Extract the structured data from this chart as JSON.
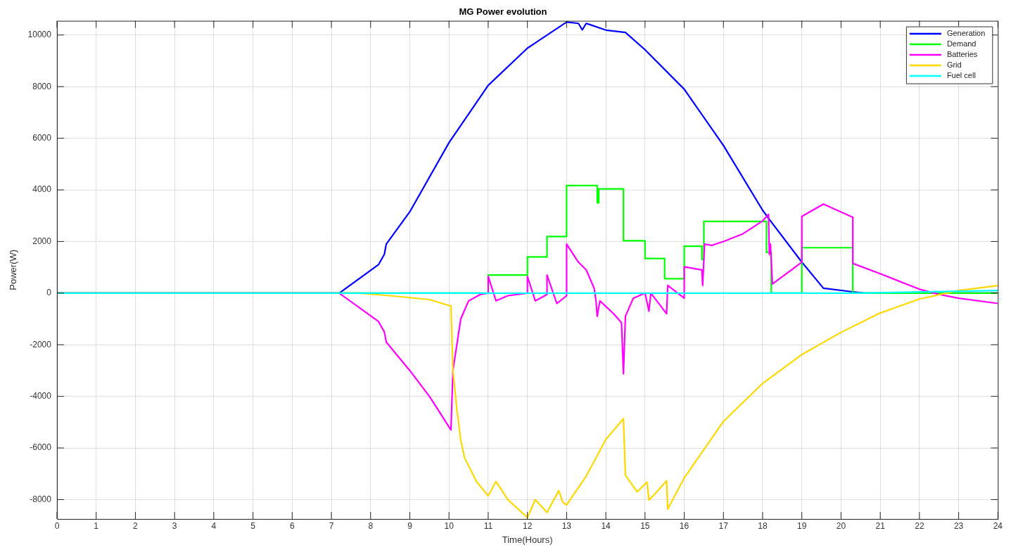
{
  "chart_data": {
    "type": "line",
    "title": "MG Power evolution",
    "xlabel": "Time(Hours)",
    "ylabel": "Power(W)",
    "xlim": [
      0,
      24
    ],
    "xticks": [
      0,
      1,
      2,
      3,
      4,
      5,
      6,
      7,
      8,
      9,
      10,
      11,
      12,
      13,
      14,
      15,
      16,
      17,
      18,
      19,
      20,
      21,
      22,
      23,
      24
    ],
    "ylim": [
      -8750,
      10550
    ],
    "yticks": [
      -8000,
      -6000,
      -4000,
      -2000,
      0,
      2000,
      4000,
      6000,
      8000,
      10000
    ],
    "grid": true,
    "legend": "top right",
    "marker": "none",
    "line_style": "solid",
    "series": [
      {
        "name": "Generation",
        "color": "#0000ff",
        "x": [
          0,
          7.2,
          8.2,
          8.35,
          8.4,
          9,
          10,
          11,
          12,
          13,
          13.3,
          13.4,
          13.5,
          13.6,
          14,
          14.5,
          15,
          16,
          17,
          18,
          18.2,
          19,
          19.55,
          20.3,
          20.6,
          24
        ],
        "values": [
          0,
          0,
          1100,
          1500,
          1900,
          3150,
          5830,
          8050,
          9490,
          10500,
          10450,
          10200,
          10450,
          10400,
          10190,
          10100,
          9430,
          7900,
          5720,
          3210,
          2800,
          1200,
          190,
          50,
          0,
          0
        ]
      },
      {
        "name": "Demand",
        "color": "#00ff00",
        "x": [
          0,
          11,
          11,
          12,
          12,
          12.5,
          12.5,
          13,
          13,
          13.78,
          13.78,
          13.82,
          13.82,
          14.45,
          14.45,
          15,
          15,
          15.5,
          15.5,
          16,
          16,
          16.45,
          16.45,
          16.5,
          16.5,
          18.1,
          18.1,
          18.22,
          18.22,
          19,
          19,
          20.3,
          20.3,
          24
        ],
        "values": [
          0,
          0,
          700,
          700,
          1400,
          1400,
          2190,
          2190,
          4170,
          4170,
          3500,
          3500,
          4040,
          4040,
          2030,
          2030,
          1340,
          1340,
          560,
          560,
          1820,
          1820,
          1300,
          1300,
          2780,
          2780,
          1580,
          1580,
          0,
          0,
          1760,
          1760,
          0,
          0
        ]
      },
      {
        "name": "Batteries",
        "color": "#ff00ff",
        "x": [
          0,
          7.2,
          8.2,
          8.35,
          8.4,
          9,
          9.5,
          10.05,
          10.1,
          10.3,
          10.5,
          10.8,
          11,
          11,
          11.2,
          11.5,
          12,
          12,
          12.2,
          12.5,
          12.5,
          12.75,
          13,
          13,
          13.3,
          13.5,
          13.7,
          13.75,
          13.78,
          13.85,
          14.2,
          14.4,
          14.45,
          14.5,
          14.7,
          15,
          15.1,
          15.15,
          15.55,
          15.58,
          16,
          16,
          16.45,
          16.47,
          16.52,
          16.7,
          17,
          17.5,
          18,
          18.15,
          18.17,
          18.2,
          18.25,
          19,
          19,
          19.55,
          20.3,
          20.3,
          21,
          22,
          22.5,
          23,
          24
        ],
        "values": [
          0,
          0,
          -1100,
          -1500,
          -1900,
          -3000,
          -4000,
          -5300,
          -3000,
          -1000,
          -300,
          -50,
          0,
          650,
          -300,
          -100,
          0,
          650,
          -300,
          -50,
          700,
          -400,
          -100,
          1900,
          1200,
          900,
          200,
          -300,
          -900,
          -300,
          -800,
          -1150,
          -3130,
          -900,
          -200,
          0,
          -700,
          0,
          -800,
          300,
          -200,
          1020,
          900,
          300,
          1900,
          1850,
          2000,
          2300,
          2800,
          3050,
          1500,
          1900,
          350,
          1200,
          2970,
          3450,
          2940,
          1150,
          750,
          150,
          -50,
          -200,
          -400
        ]
      },
      {
        "name": "Grid",
        "color": "#ffd700",
        "x": [
          0,
          7.7,
          8.5,
          9.5,
          10.05,
          10.1,
          10.2,
          10.3,
          10.4,
          10.7,
          11,
          11.2,
          11.5,
          12,
          12.2,
          12.5,
          12.8,
          12.9,
          13,
          13.5,
          14,
          14.45,
          14.5,
          14.8,
          15.05,
          15.1,
          15.3,
          15.55,
          15.58,
          16,
          17,
          18,
          19,
          20,
          21,
          22,
          23,
          24
        ],
        "values": [
          0,
          0,
          -100,
          -250,
          -500,
          -3000,
          -4500,
          -5700,
          -6390,
          -7300,
          -7850,
          -7300,
          -8000,
          -8700,
          -8000,
          -8500,
          -7650,
          -8100,
          -8210,
          -7090,
          -5670,
          -4870,
          -7060,
          -7700,
          -7320,
          -8020,
          -7700,
          -7270,
          -8370,
          -7160,
          -4970,
          -3500,
          -2380,
          -1520,
          -770,
          -230,
          100,
          290
        ]
      },
      {
        "name": "Fuel cell",
        "color": "#00ffff",
        "x": [
          0,
          20.5,
          24
        ],
        "values": [
          0,
          0,
          100
        ]
      }
    ]
  }
}
